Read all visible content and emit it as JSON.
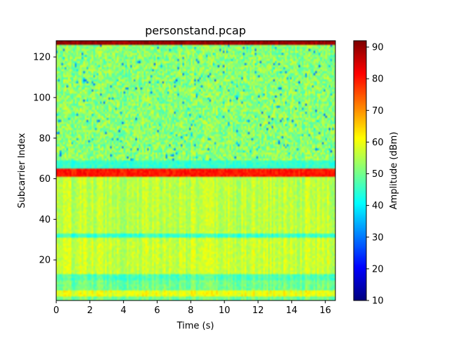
{
  "chart_data": {
    "type": "heatmap",
    "title": "personstand.pcap",
    "xlabel": "Time (s)",
    "ylabel": "Subcarrier Index",
    "colorbar_label": "Amplitude (dBm)",
    "colormap": "jet",
    "xlim": [
      0,
      16.6
    ],
    "ylim": [
      0,
      128
    ],
    "clim": [
      10,
      92
    ],
    "x_ticks": [
      0,
      2,
      4,
      6,
      8,
      10,
      12,
      14,
      16
    ],
    "y_ticks": [
      20,
      40,
      60,
      80,
      100,
      120
    ],
    "colorbar_ticks": [
      10,
      20,
      30,
      40,
      50,
      60,
      70,
      80,
      90
    ],
    "grid": false,
    "subcarrier_bands": [
      {
        "from": 0,
        "to": 2,
        "typical_amplitude": 50
      },
      {
        "from": 2,
        "to": 5,
        "typical_amplitude": 60
      },
      {
        "from": 5,
        "to": 10,
        "typical_amplitude": 50
      },
      {
        "from": 10,
        "to": 13,
        "typical_amplitude": 47
      },
      {
        "from": 13,
        "to": 31,
        "typical_amplitude": 57
      },
      {
        "from": 31,
        "to": 33,
        "typical_amplitude": 45
      },
      {
        "from": 33,
        "to": 61,
        "typical_amplitude": 56
      },
      {
        "from": 61,
        "to": 65,
        "typical_amplitude": 80
      },
      {
        "from": 65,
        "to": 69,
        "typical_amplitude": 45
      },
      {
        "from": 69,
        "to": 126,
        "typical_amplitude": 52
      },
      {
        "from": 126,
        "to": 128,
        "typical_amplitude": 90
      }
    ]
  }
}
